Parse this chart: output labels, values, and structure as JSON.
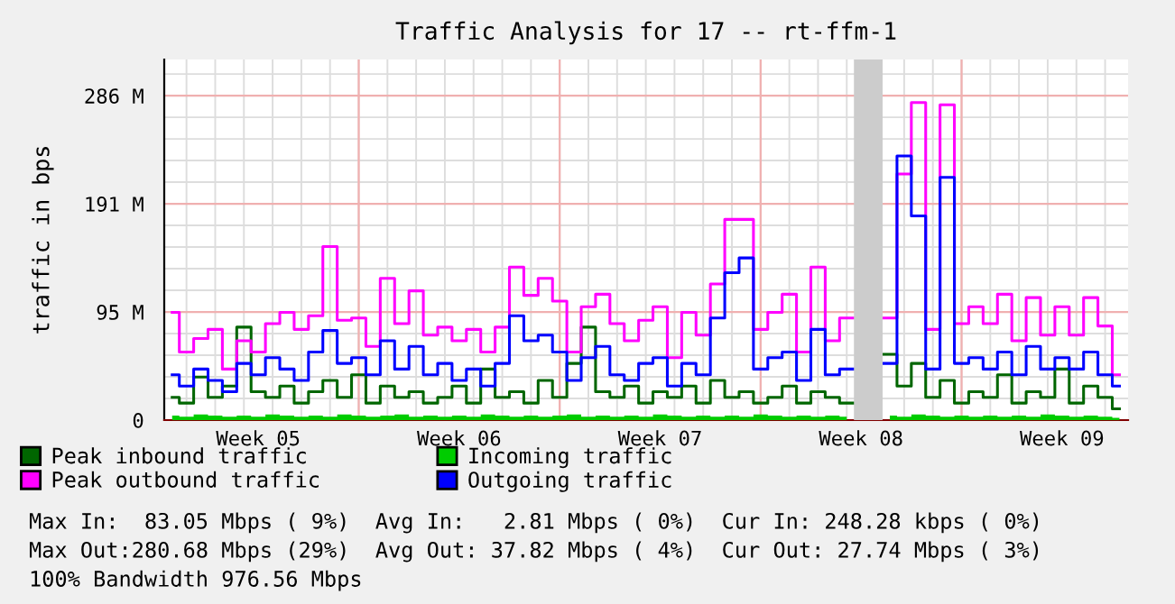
{
  "chart_data": {
    "type": "step",
    "title": "Traffic Analysis for 17 -- rt-ffm-1",
    "ylabel": "traffic in bps",
    "categories": [
      null,
      null,
      null,
      null,
      null,
      null,
      "Week 05",
      null,
      null,
      null,
      null,
      null,
      null,
      null,
      null,
      null,
      null,
      null,
      null,
      null,
      "Week 06",
      null,
      null,
      null,
      null,
      null,
      null,
      null,
      null,
      null,
      null,
      null,
      null,
      null,
      "Week 07",
      null,
      null,
      null,
      null,
      null,
      null,
      null,
      null,
      null,
      null,
      null,
      null,
      null,
      "Week 08",
      null,
      null,
      null,
      null,
      null,
      null,
      null,
      null,
      null,
      null,
      null,
      null,
      null,
      "Week 09",
      null,
      null,
      null,
      null
    ],
    "series": [
      {
        "name": "Peak inbound traffic",
        "color": "#006600",
        "values": [
          20,
          15,
          38,
          20,
          30,
          82,
          25,
          20,
          30,
          15,
          25,
          35,
          20,
          40,
          15,
          30,
          20,
          25,
          15,
          20,
          30,
          15,
          45,
          20,
          25,
          15,
          35,
          20,
          50,
          82,
          25,
          20,
          30,
          15,
          25,
          20,
          30,
          15,
          35,
          20,
          25,
          15,
          20,
          30,
          15,
          25,
          20,
          15,
          null,
          null,
          58,
          30,
          50,
          20,
          35,
          15,
          25,
          20,
          40,
          15,
          25,
          20,
          45,
          15,
          30,
          20,
          10
        ]
      },
      {
        "name": "Incoming traffic",
        "type": "area",
        "color": "#00cc00",
        "values": [
          4,
          3,
          5,
          4,
          3,
          4,
          3,
          5,
          4,
          3,
          4,
          3,
          5,
          4,
          3,
          4,
          5,
          3,
          4,
          3,
          4,
          3,
          5,
          4,
          3,
          4,
          3,
          4,
          5,
          3,
          4,
          3,
          4,
          3,
          5,
          4,
          3,
          4,
          3,
          4,
          3,
          5,
          4,
          3,
          4,
          3,
          4,
          3,
          null,
          null,
          4,
          3,
          5,
          4,
          3,
          4,
          3,
          4,
          3,
          4,
          3,
          5,
          4,
          3,
          4,
          3,
          2
        ]
      },
      {
        "name": "Peak outbound traffic",
        "color": "#ff00ff",
        "values": [
          95,
          60,
          72,
          80,
          45,
          70,
          60,
          85,
          95,
          80,
          92,
          153,
          88,
          90,
          65,
          125,
          85,
          114,
          75,
          82,
          70,
          80,
          60,
          82,
          135,
          110,
          125,
          105,
          60,
          100,
          111,
          85,
          70,
          88,
          100,
          55,
          95,
          75,
          120,
          177,
          177,
          80,
          95,
          111,
          60,
          135,
          70,
          90,
          null,
          null,
          90,
          217,
          280,
          80,
          278,
          85,
          100,
          85,
          111,
          70,
          108,
          75,
          100,
          75,
          108,
          83,
          40
        ]
      },
      {
        "name": "Outgoing traffic",
        "color": "#0000ff",
        "values": [
          40,
          30,
          45,
          35,
          25,
          50,
          40,
          55,
          45,
          35,
          60,
          79,
          50,
          55,
          40,
          70,
          45,
          65,
          40,
          50,
          35,
          45,
          30,
          50,
          92,
          70,
          75,
          60,
          35,
          55,
          65,
          40,
          35,
          50,
          55,
          30,
          50,
          40,
          90,
          130,
          143,
          45,
          55,
          60,
          35,
          80,
          40,
          45,
          null,
          null,
          50,
          233,
          180,
          45,
          214,
          50,
          55,
          45,
          60,
          40,
          65,
          45,
          55,
          45,
          60,
          40,
          30
        ]
      }
    ],
    "ylim": [
      0,
      318
    ],
    "yticks": [
      0,
      {
        "value": 95.37,
        "label": "95 M"
      },
      {
        "value": 190.73,
        "label": "191 M"
      },
      {
        "value": 286.1,
        "label": "286 M"
      }
    ],
    "grid": true,
    "legend": "bottom",
    "annotations": [
      "Max In:  83.05 Mbps ( 9%)  Avg In:   2.81 Mbps ( 0%)  Cur In: 248.28 kbps ( 0%)",
      "Max Out:280.68 Mbps (29%)  Avg Out: 37.82 Mbps ( 4%)  Cur Out: 27.74 Mbps ( 3%)",
      "100% Bandwidth 976.56 Mbps"
    ]
  }
}
